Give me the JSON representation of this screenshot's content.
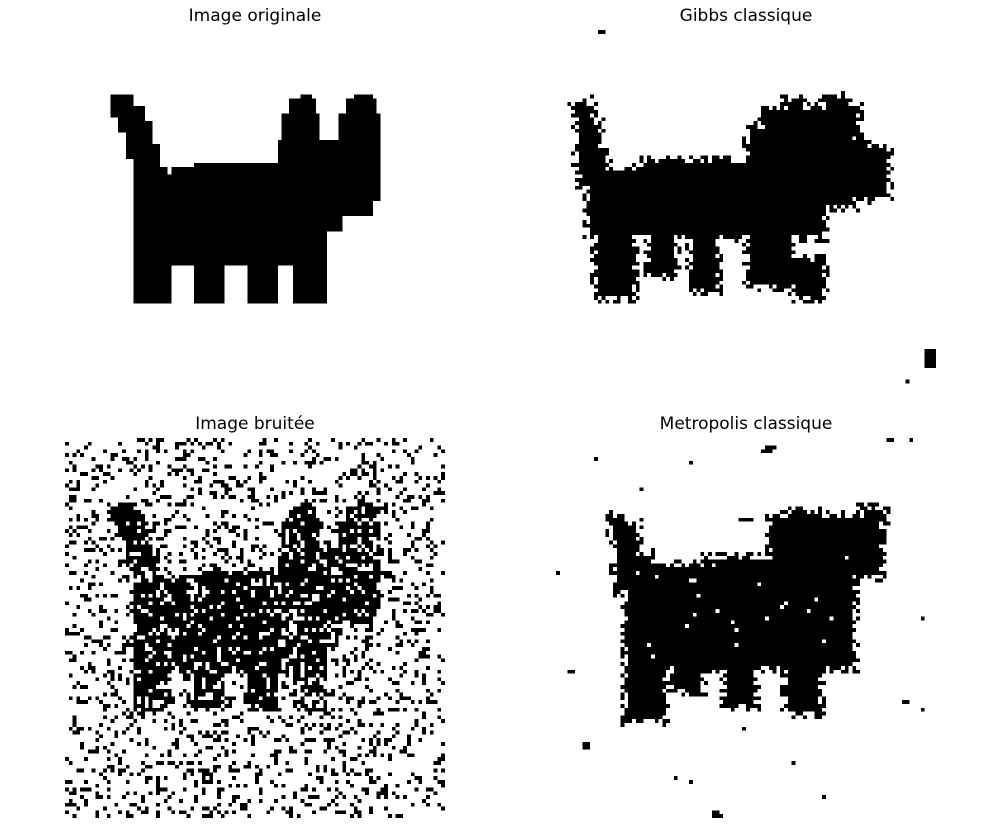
{
  "figure": {
    "background": "#ffffff",
    "pixel_color": "#000000",
    "panels": [
      {
        "title": "Image originale",
        "kind": "original"
      },
      {
        "title": "Gibbs classique",
        "kind": "gibbs"
      },
      {
        "title": "Image bruitée",
        "kind": "noisy"
      },
      {
        "title": "Metropolis classique",
        "kind": "metropolis"
      }
    ]
  }
}
